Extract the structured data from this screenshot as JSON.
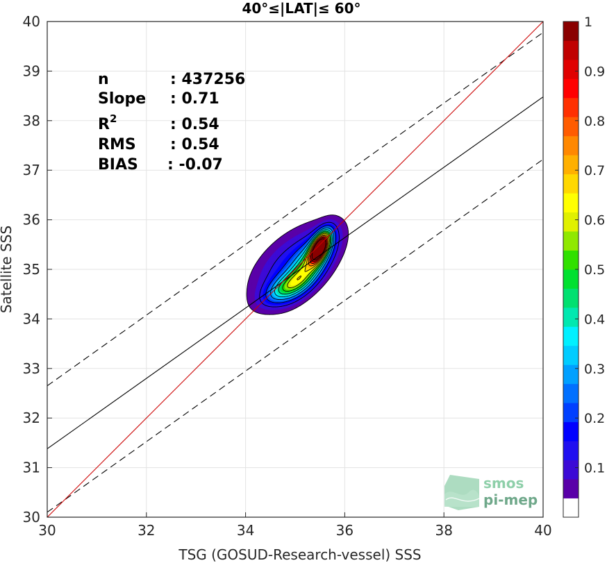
{
  "chart_data": {
    "type": "contour",
    "title": "40°≤|LAT|≤ 60°",
    "xlabel": "TSG (GOSUD-Research-vessel) SSS",
    "ylabel": "Satellite SSS",
    "xlim": [
      30,
      40
    ],
    "ylim": [
      30,
      40
    ],
    "xticks": [
      "30",
      "32",
      "34",
      "36",
      "38",
      "40"
    ],
    "yticks": [
      "30",
      "31",
      "32",
      "33",
      "34",
      "35",
      "36",
      "37",
      "38",
      "39",
      "40"
    ],
    "grid": true,
    "stats": [
      {
        "label": "n",
        "value": ": 437256"
      },
      {
        "label": "Slope",
        "value": ": 0.71"
      },
      {
        "label": "R2",
        "value": ": 0.54"
      },
      {
        "label": "RMS",
        "value": ": 0.54"
      },
      {
        "label": "BIAS",
        "value": ": -0.07"
      }
    ],
    "lines": {
      "identity": {
        "x": [
          30,
          40
        ],
        "y": [
          30,
          40
        ],
        "color": "#cc0000"
      },
      "regression": {
        "x": [
          30,
          40
        ],
        "y": [
          31.38,
          38.48
        ],
        "color": "#000000"
      },
      "upper_bound": {
        "x": [
          30,
          40
        ],
        "y": [
          32.65,
          39.78
        ],
        "color": "#000000",
        "style": "dashed"
      },
      "lower_bound": {
        "x": [
          30,
          40
        ],
        "y": [
          30.1,
          37.22
        ],
        "color": "#000000",
        "style": "dashed"
      }
    },
    "density_peak": {
      "x": 35.5,
      "y": 35.45
    },
    "colorbar": {
      "ticks": [
        "0.1",
        "0.2",
        "0.3",
        "0.4",
        "0.5",
        "0.6",
        "0.7",
        "0.8",
        "0.9",
        "1"
      ],
      "range": [
        0.05,
        1
      ],
      "colors": [
        "#ffffff",
        "#5a00a8",
        "#3c0ad6",
        "#2010f0",
        "#0000ff",
        "#0040ff",
        "#0070ff",
        "#00a0ff",
        "#00ccff",
        "#00f0ff",
        "#00e8b0",
        "#00e070",
        "#00e030",
        "#30e000",
        "#90e800",
        "#e0f000",
        "#ffff00",
        "#ffd800",
        "#ffb000",
        "#ff8800",
        "#ff5c00",
        "#ff3000",
        "#ff0000",
        "#e00000",
        "#c00000",
        "#8a0000"
      ]
    },
    "logo": {
      "line1": "smos",
      "line2": "pi-mep"
    }
  }
}
